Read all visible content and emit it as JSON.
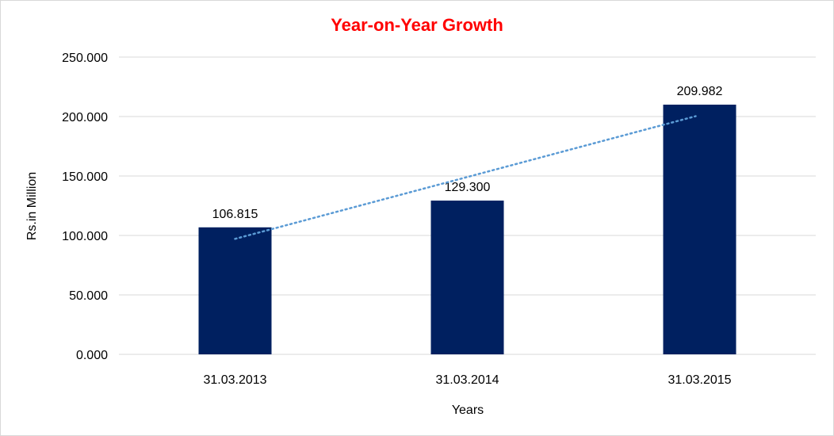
{
  "chart_data": {
    "type": "bar",
    "title": "Year-on-Year Growth",
    "xlabel": "Years",
    "ylabel": "Rs.in Million",
    "categories": [
      "31.03.2013",
      "31.03.2014",
      "31.03.2015"
    ],
    "values": [
      106.815,
      129.3,
      209.982
    ],
    "data_labels": [
      "106.815",
      "129.300",
      "209.982"
    ],
    "ylim": [
      0,
      250
    ],
    "yticks": [
      "0.000",
      "50.000",
      "100.000",
      "150.000",
      "200.000",
      "250.000"
    ],
    "ytick_values": [
      0,
      50,
      100,
      150,
      200,
      250
    ],
    "grid": true,
    "trendline": {
      "type": "linear",
      "style": "dotted"
    },
    "colors": {
      "title": "#FF0000",
      "bar": "#002060",
      "trendline": "#5B9BD5",
      "grid": "#D9D9D9"
    }
  }
}
